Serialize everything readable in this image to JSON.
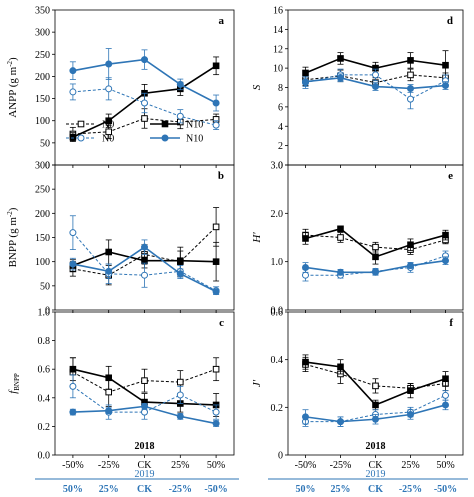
{
  "chart_data": {
    "type": "line",
    "legend": {
      "placement": "inside-bottom-right of panel a",
      "entries": [
        {
          "label": "N0",
          "series": "N0_2018"
        },
        {
          "label": "N10",
          "series": "N10_2018"
        },
        {
          "label": "N0",
          "series": "N0_2019"
        },
        {
          "label": "N10",
          "series": "N10_2019"
        }
      ]
    },
    "xaxis": {
      "categories": [
        0,
        1,
        2,
        3,
        4
      ],
      "year_top": "2018",
      "labels_top": [
        "-50%",
        "-25%",
        "CK",
        "25%",
        "50%"
      ],
      "year_bottom": "2019",
      "labels_bottom": [
        "50%",
        "25%",
        "CK",
        "-25%",
        "-50%"
      ],
      "color_top": "#000000",
      "color_bottom": "#2e75b6"
    },
    "styles": {
      "N0_2018": {
        "color": "#000000",
        "dash": "3,2",
        "marker": "square-open"
      },
      "N10_2018": {
        "color": "#000000",
        "dash": "",
        "marker": "square-filled"
      },
      "N0_2019": {
        "color": "#2e75b6",
        "dash": "3,2",
        "marker": "circle-open"
      },
      "N10_2019": {
        "color": "#2e75b6",
        "dash": "",
        "marker": "circle-filled"
      }
    },
    "panels": [
      {
        "id": "a",
        "letter": "a",
        "ylabel_main": "ANPP",
        "ylabel_sub": " (g m",
        "ylabel_sup": "-2",
        "ylabel_end": ")",
        "ylim": [
          0,
          350
        ],
        "yticks": [
          "0",
          "50",
          "100",
          "150",
          "200",
          "250",
          "300",
          "350"
        ],
        "ytick_values": [
          0,
          50,
          100,
          150,
          200,
          250,
          300,
          350
        ],
        "grid": false,
        "series": {
          "N0_2018": {
            "values": [
              70,
              75,
              105,
              97,
              103
            ],
            "errors": [
              15,
              15,
              22,
              15,
              12
            ]
          },
          "N10_2018": {
            "values": [
              63,
              100,
              162,
              172,
              224
            ],
            "errors": [
              10,
              15,
              20,
              15,
              20
            ]
          },
          "N0_2019": {
            "values": [
              165,
              172,
              140,
              110,
              90
            ],
            "errors": [
              18,
              25,
              22,
              15,
              10
            ]
          },
          "N10_2019": {
            "values": [
              213,
              228,
              238,
              182,
              140
            ],
            "errors": [
              20,
              35,
              22,
              12,
              18
            ]
          }
        }
      },
      {
        "id": "d",
        "letter": "d",
        "ylabel_main": "S",
        "ylabel_sub": "",
        "ylabel_sup": "",
        "ylabel_end": "",
        "ylim": [
          0,
          16
        ],
        "yticks": [
          "0",
          "2",
          "4",
          "6",
          "8",
          "10",
          "12",
          "14",
          "16"
        ],
        "ytick_values": [
          0,
          2,
          4,
          6,
          8,
          10,
          12,
          14,
          16
        ],
        "grid": false,
        "series": {
          "N0_2018": {
            "values": [
              8.8,
              9.2,
              8.5,
              9.3,
              9.0
            ],
            "errors": [
              0.6,
              0.6,
              0.5,
              0.6,
              0.5
            ]
          },
          "N10_2018": {
            "values": [
              9.5,
              11.0,
              10.0,
              10.8,
              10.3
            ],
            "errors": [
              0.6,
              0.6,
              0.6,
              0.8,
              1.5
            ]
          },
          "N0_2019": {
            "values": [
              8.5,
              9.3,
              9.3,
              6.8,
              8.7
            ],
            "errors": [
              0.6,
              0.6,
              0.6,
              1.0,
              0.6
            ]
          },
          "N10_2019": {
            "values": [
              8.6,
              9.0,
              8.1,
              7.9,
              8.2
            ],
            "errors": [
              0.5,
              0.4,
              0.4,
              0.4,
              0.4
            ]
          }
        }
      },
      {
        "id": "b",
        "letter": "b",
        "ylabel_main": "BNPP",
        "ylabel_sub": " (g m",
        "ylabel_sup": "-2",
        "ylabel_end": ")",
        "ylim": [
          0,
          300
        ],
        "yticks": [
          "0",
          "50",
          "100",
          "150",
          "200",
          "250",
          "300"
        ],
        "ytick_values": [
          0,
          50,
          100,
          150,
          200,
          250,
          300
        ],
        "grid": false,
        "series": {
          "N0_2018": {
            "values": [
              85,
              72,
              115,
              100,
              172
            ],
            "errors": [
              15,
              20,
              20,
              30,
              40
            ]
          },
          "N10_2018": {
            "values": [
              92,
              120,
              102,
              102,
              100
            ],
            "errors": [
              12,
              25,
              15,
              20,
              40
            ]
          },
          "N0_2019": {
            "values": [
              160,
              75,
              72,
              80,
              40
            ],
            "errors": [
              35,
              20,
              25,
              12,
              8
            ]
          },
          "N10_2019": {
            "values": [
              95,
              80,
              130,
              75,
              38
            ],
            "errors": [
              12,
              15,
              15,
              10,
              5
            ]
          }
        }
      },
      {
        "id": "e",
        "letter": "e",
        "ylabel_main": "H'",
        "ylabel_sub": "",
        "ylabel_sup": "",
        "ylabel_end": "",
        "ylim": [
          0,
          3
        ],
        "yticks": [
          "0.0",
          "1.0",
          "2.0",
          "3.0"
        ],
        "ytick_values": [
          0,
          1,
          2,
          3
        ],
        "grid": false,
        "series": {
          "N0_2018": {
            "values": [
              1.55,
              1.5,
              1.3,
              1.25,
              1.45
            ],
            "errors": [
              0.12,
              0.1,
              0.1,
              0.1,
              0.08
            ]
          },
          "N10_2018": {
            "values": [
              1.48,
              1.68,
              1.1,
              1.35,
              1.55
            ],
            "errors": [
              0.12,
              0.06,
              0.15,
              0.12,
              0.1
            ]
          },
          "N0_2019": {
            "values": [
              0.72,
              0.72,
              0.8,
              0.88,
              1.12
            ],
            "errors": [
              0.12,
              0.06,
              0.06,
              0.1,
              0.1
            ]
          },
          "N10_2019": {
            "values": [
              0.88,
              0.78,
              0.78,
              0.92,
              1.02
            ],
            "errors": [
              0.1,
              0.06,
              0.06,
              0.06,
              0.08
            ]
          }
        }
      },
      {
        "id": "c",
        "letter": "c",
        "ylabel_main": "f",
        "ylabel_sub": "BNPP",
        "ylabel_sup": "",
        "ylabel_end": "",
        "ylim": [
          0,
          1
        ],
        "yticks": [
          "0.0",
          "0.2",
          "0.4",
          "0.6",
          "0.8",
          "1.0"
        ],
        "ytick_values": [
          0,
          0.2,
          0.4,
          0.6,
          0.8,
          1.0
        ],
        "grid": false,
        "series": {
          "N0_2018": {
            "values": [
              0.58,
              0.44,
              0.52,
              0.51,
              0.6
            ],
            "errors": [
              0.1,
              0.1,
              0.08,
              0.08,
              0.08
            ]
          },
          "N10_2018": {
            "values": [
              0.6,
              0.54,
              0.37,
              0.36,
              0.35
            ],
            "errors": [
              0.08,
              0.08,
              0.06,
              0.06,
              0.08
            ]
          },
          "N0_2019": {
            "values": [
              0.48,
              0.3,
              0.3,
              0.42,
              0.3
            ],
            "errors": [
              0.08,
              0.05,
              0.05,
              0.06,
              0.05
            ]
          },
          "N10_2019": {
            "values": [
              0.3,
              0.31,
              0.34,
              0.27,
              0.22
            ],
            "errors": [
              0.02,
              0.02,
              0.02,
              0.02,
              0.02
            ]
          }
        }
      },
      {
        "id": "f",
        "letter": "f",
        "ylabel_main": "J'",
        "ylabel_sub": "",
        "ylabel_sup": "",
        "ylabel_end": "",
        "ylim": [
          0,
          0.6
        ],
        "yticks": [
          "0",
          "0.2",
          "0.4",
          "0.6"
        ],
        "ytick_values": [
          0,
          0.2,
          0.4,
          0.6
        ],
        "grid": false,
        "series": {
          "N0_2018": {
            "values": [
              0.38,
              0.34,
              0.29,
              0.28,
              0.3
            ],
            "errors": [
              0.03,
              0.04,
              0.03,
              0.02,
              0.03
            ]
          },
          "N10_2018": {
            "values": [
              0.39,
              0.37,
              0.21,
              0.27,
              0.32
            ],
            "errors": [
              0.03,
              0.03,
              0.02,
              0.03,
              0.03
            ]
          },
          "N0_2019": {
            "values": [
              0.14,
              0.14,
              0.17,
              0.18,
              0.25
            ],
            "errors": [
              0.02,
              0.02,
              0.02,
              0.02,
              0.02
            ]
          },
          "N10_2019": {
            "values": [
              0.16,
              0.14,
              0.15,
              0.17,
              0.21
            ],
            "errors": [
              0.03,
              0.02,
              0.02,
              0.02,
              0.02
            ]
          }
        }
      }
    ]
  }
}
